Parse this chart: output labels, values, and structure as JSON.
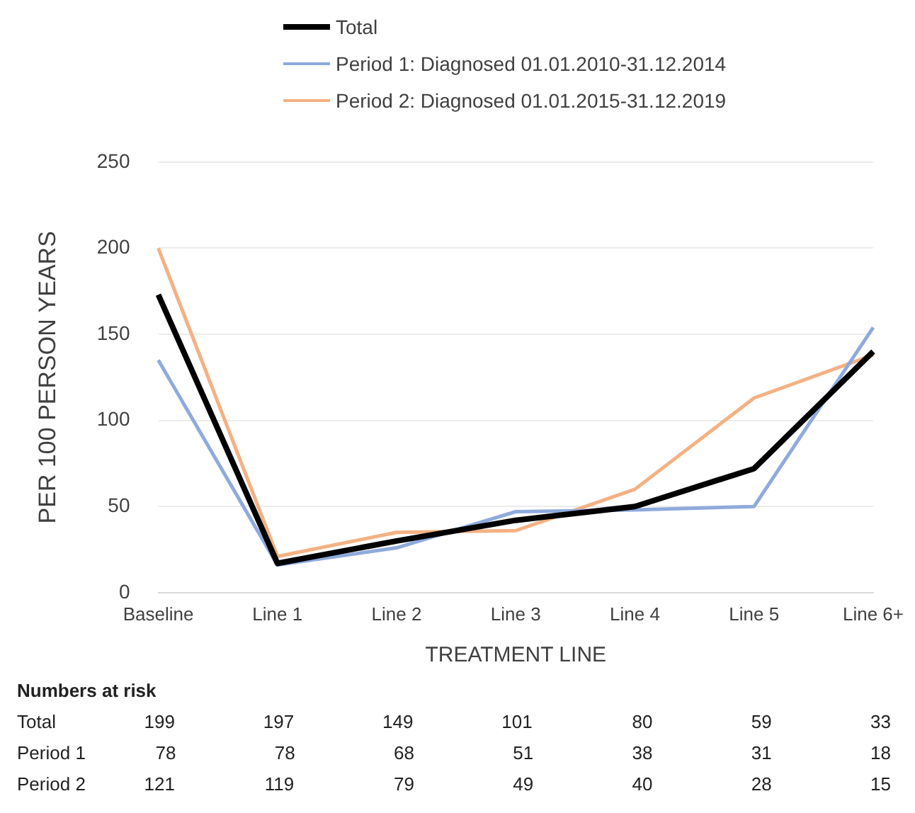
{
  "chart_data": {
    "type": "line",
    "xlabel": "TREATMENT LINE",
    "ylabel": "PER 100 PERSON YEARS",
    "categories": [
      "Baseline",
      "Line 1",
      "Line 2",
      "Line 3",
      "Line 4",
      "Line 5",
      "Line 6+"
    ],
    "series": [
      {
        "name": "Total",
        "color": "#000000",
        "values": [
          173,
          17,
          30,
          42,
          50,
          72,
          140
        ]
      },
      {
        "name": "Period 1: Diagnosed 01.01.2010-31.12.2014",
        "color": "#8faadc",
        "values": [
          135,
          16,
          26,
          47,
          48,
          50,
          154
        ]
      },
      {
        "name": "Period 2: Diagnosed 01.01.2015-31.12.2019",
        "color": "#f4b183",
        "values": [
          200,
          21,
          35,
          36,
          60,
          113,
          138
        ]
      }
    ],
    "ylim": [
      0,
      250
    ],
    "yticks": [
      0,
      50,
      100,
      150,
      200,
      250
    ],
    "grid": "y",
    "legend": "top",
    "marker": "none",
    "line_style": "solid",
    "annotations": [
      "Numbers at risk",
      "Total",
      "199",
      "197",
      "149",
      "101",
      "80",
      "59",
      "33",
      "Period 1",
      "78",
      "78",
      "68",
      "51",
      "38",
      "31",
      "18",
      "Period 2",
      "121",
      "119",
      "79",
      "49",
      "40",
      "28",
      "15"
    ]
  }
}
